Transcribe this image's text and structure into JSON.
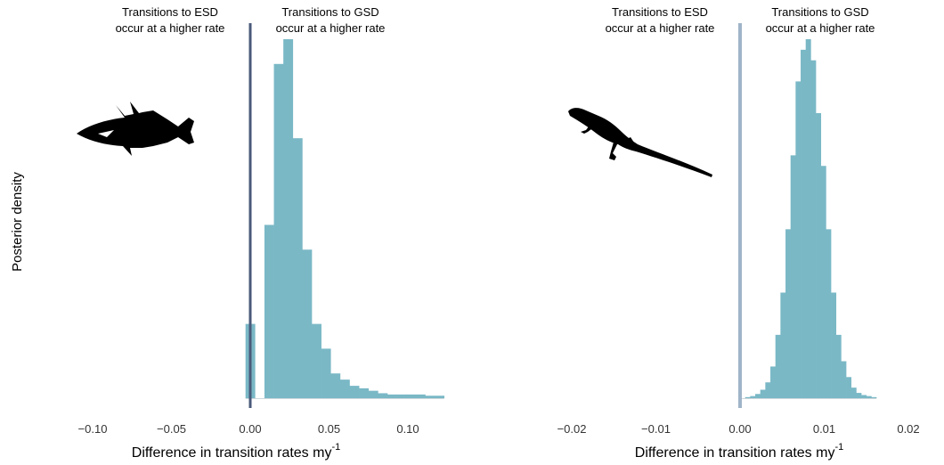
{
  "ylabel": "Posterior density",
  "colors": {
    "bar": "#7ab8c6",
    "zero_line_left": "#4a5a7a",
    "zero_line_right": "#9fb4c8"
  },
  "icons": {
    "left": "fish-silhouette-icon",
    "right": "lizard-silhouette-icon"
  },
  "chart_data": [
    {
      "type": "bar",
      "title": "",
      "xlabel": "Difference in transition rates my",
      "xlabel_superscript": "-1",
      "ylabel": "Posterior density",
      "xlim": [
        -0.11,
        0.12
      ],
      "ticks": [
        {
          "value": -0.1,
          "label": "−0.10"
        },
        {
          "value": -0.05,
          "label": "−0.05"
        },
        {
          "value": 0.0,
          "label": "0.00"
        },
        {
          "value": 0.05,
          "label": "0.05"
        },
        {
          "value": 0.1,
          "label": "0.10"
        }
      ],
      "annotations": {
        "left": [
          "Transitions to ESD",
          "occur at a higher rate"
        ],
        "right": [
          "Transitions to GSD",
          "occur at a higher rate"
        ]
      },
      "bin_width": 0.006,
      "bin_start": -0.003,
      "values": [
        0.06,
        0.0,
        0.14,
        0.27,
        0.29,
        0.21,
        0.12,
        0.06,
        0.04,
        0.02,
        0.015,
        0.01,
        0.008,
        0.006,
        0.004,
        0.003,
        0.003,
        0.003,
        0.003,
        0.002,
        0.002
      ]
    },
    {
      "type": "bar",
      "title": "",
      "xlabel": "Difference in transition rates my",
      "xlabel_superscript": "-1",
      "ylabel": "",
      "xlim": [
        -0.0228,
        0.0233
      ],
      "ticks": [
        {
          "value": -0.02,
          "label": "−0.02"
        },
        {
          "value": -0.01,
          "label": "−0.01"
        },
        {
          "value": 0.0,
          "label": "0.00"
        },
        {
          "value": 0.01,
          "label": "0.01"
        },
        {
          "value": 0.02,
          "label": "0.02"
        }
      ],
      "annotations": {
        "left": [
          "Transitions to ESD",
          "occur at a higher rate"
        ],
        "right": [
          "Transitions to GSD",
          "occur at a higher rate"
        ]
      },
      "bin_width": 0.0006,
      "bin_start": 0.0,
      "values": [
        0.0,
        0.001,
        0.002,
        0.004,
        0.008,
        0.015,
        0.03,
        0.06,
        0.1,
        0.16,
        0.23,
        0.3,
        0.33,
        0.34,
        0.32,
        0.27,
        0.22,
        0.16,
        0.1,
        0.06,
        0.035,
        0.02,
        0.01,
        0.005,
        0.003,
        0.002,
        0.001
      ]
    }
  ]
}
